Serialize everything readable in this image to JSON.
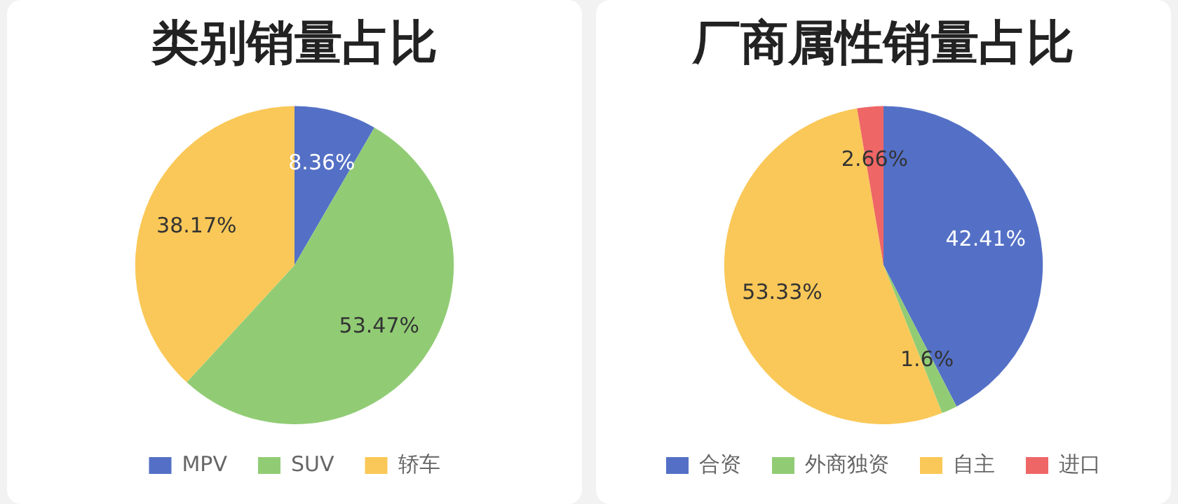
{
  "chart_data": [
    {
      "type": "pie",
      "title": "类别销量占比",
      "categories": [
        "MPV",
        "SUV",
        "轿车"
      ],
      "values": [
        8.36,
        53.47,
        38.17
      ],
      "colors": [
        "#5470c6",
        "#91cc75",
        "#fac858"
      ],
      "value_labels": [
        "8.36%",
        "53.47%",
        "38.17%"
      ],
      "legend": "bottom"
    },
    {
      "type": "pie",
      "title": "厂商属性销量占比",
      "categories": [
        "合资",
        "外商独资",
        "自主",
        "进口"
      ],
      "values": [
        42.41,
        1.6,
        53.33,
        2.66
      ],
      "colors": [
        "#5470c6",
        "#91cc75",
        "#fac858",
        "#ee6666"
      ],
      "value_labels": [
        "42.41%",
        "1.6%",
        "53.33%",
        "2.66%"
      ],
      "legend": "bottom"
    }
  ]
}
